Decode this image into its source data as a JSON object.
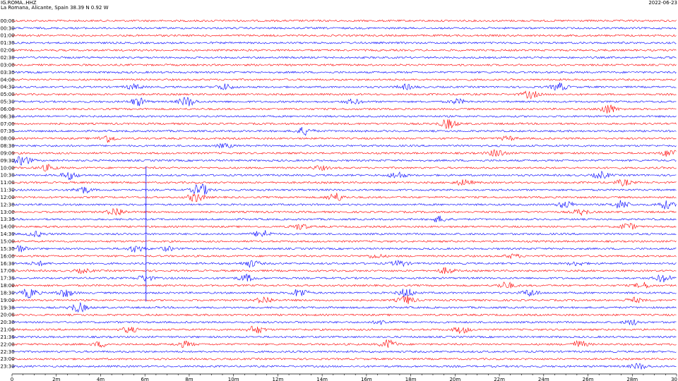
{
  "header": {
    "station": "IG.ROMA..HHZ",
    "location": "La Romana, Alicante, Spain  38.39 N 0.92 W",
    "date": "2022-06-23"
  },
  "colors": {
    "red": "#ff0000",
    "blue": "#0000ff",
    "axis": "#000000"
  },
  "chart_data": {
    "type": "line",
    "title": "IG.ROMA..HHZ",
    "row_labels": [
      "00:00",
      "00:30",
      "01:00",
      "01:30",
      "02:00",
      "02:30",
      "03:00",
      "03:30",
      "04:00",
      "04:30",
      "05:00",
      "05:30",
      "06:00",
      "06:30",
      "07:00",
      "07:30",
      "08:00",
      "08:30",
      "09:00",
      "09:30",
      "10:00",
      "10:30",
      "11:00",
      "11:30",
      "12:00",
      "12:30",
      "13:00",
      "13:30",
      "14:00",
      "14:30",
      "15:00",
      "15:30",
      "16:00",
      "16:30",
      "17:00",
      "17:30",
      "18:00",
      "18:30",
      "19:00",
      "19:30",
      "20:00",
      "20:30",
      "21:00",
      "21:30",
      "22:00",
      "22:30",
      "23:00",
      "23:30"
    ],
    "row_colors": [
      "red",
      "blue"
    ],
    "x_ticks": [
      {
        "value": 0,
        "label": "0"
      },
      {
        "value": 2,
        "label": "2m"
      },
      {
        "value": 4,
        "label": "4m"
      },
      {
        "value": 6,
        "label": "6m"
      },
      {
        "value": 8,
        "label": "8m"
      },
      {
        "value": 10,
        "label": "10m"
      },
      {
        "value": 12,
        "label": "12m"
      },
      {
        "value": 14,
        "label": "14m"
      },
      {
        "value": 16,
        "label": "16m"
      },
      {
        "value": 18,
        "label": "18m"
      },
      {
        "value": 20,
        "label": "20m"
      },
      {
        "value": 22,
        "label": "22m"
      },
      {
        "value": 24,
        "label": "24m"
      },
      {
        "value": 26,
        "label": "26m"
      },
      {
        "value": 28,
        "label": "28m"
      },
      {
        "value": 30,
        "label": "30"
      }
    ],
    "xlim": [
      0,
      30
    ],
    "bursts": [
      {
        "row": 9,
        "t": 5.5,
        "amp": 0.5
      },
      {
        "row": 9,
        "t": 9.6,
        "amp": 0.6
      },
      {
        "row": 9,
        "t": 17.8,
        "amp": 0.5
      },
      {
        "row": 9,
        "t": 24.7,
        "amp": 0.8
      },
      {
        "row": 10,
        "t": 23.4,
        "amp": 0.8
      },
      {
        "row": 11,
        "t": 5.7,
        "amp": 0.8
      },
      {
        "row": 11,
        "t": 7.9,
        "amp": 1.0
      },
      {
        "row": 11,
        "t": 15.4,
        "amp": 0.5
      },
      {
        "row": 11,
        "t": 20.1,
        "amp": 0.5
      },
      {
        "row": 12,
        "t": 26.9,
        "amp": 1.0
      },
      {
        "row": 14,
        "t": 19.7,
        "amp": 1.0
      },
      {
        "row": 15,
        "t": 13.2,
        "amp": 0.8
      },
      {
        "row": 16,
        "t": 4.3,
        "amp": 0.8
      },
      {
        "row": 16,
        "t": 22.4,
        "amp": 0.4
      },
      {
        "row": 17,
        "t": 9.6,
        "amp": 0.4
      },
      {
        "row": 18,
        "t": 21.9,
        "amp": 0.8
      },
      {
        "row": 18,
        "t": 29.7,
        "amp": 0.8
      },
      {
        "row": 19,
        "t": 0.5,
        "amp": 1.0
      },
      {
        "row": 20,
        "t": 1.6,
        "amp": 0.6
      },
      {
        "row": 20,
        "t": 13.9,
        "amp": 0.4
      },
      {
        "row": 21,
        "t": 2.6,
        "amp": 0.8
      },
      {
        "row": 21,
        "t": 17.4,
        "amp": 0.7
      },
      {
        "row": 21,
        "t": 26.6,
        "amp": 0.7
      },
      {
        "row": 22,
        "t": 20.4,
        "amp": 0.6
      },
      {
        "row": 22,
        "t": 27.6,
        "amp": 0.6
      },
      {
        "row": 23,
        "t": 3.2,
        "amp": 0.7
      },
      {
        "row": 23,
        "t": 8.5,
        "amp": 1.3
      },
      {
        "row": 24,
        "t": 8.3,
        "amp": 0.9
      },
      {
        "row": 24,
        "t": 14.6,
        "amp": 0.9
      },
      {
        "row": 25,
        "t": 25.0,
        "amp": 0.7
      },
      {
        "row": 25,
        "t": 27.5,
        "amp": 0.9
      },
      {
        "row": 25,
        "t": 29.5,
        "amp": 0.8
      },
      {
        "row": 26,
        "t": 4.7,
        "amp": 0.9
      },
      {
        "row": 26,
        "t": 25.7,
        "amp": 0.6
      },
      {
        "row": 27,
        "t": 19.3,
        "amp": 0.6
      },
      {
        "row": 28,
        "t": 13.0,
        "amp": 0.6
      },
      {
        "row": 28,
        "t": 27.8,
        "amp": 0.7
      },
      {
        "row": 29,
        "t": 1.1,
        "amp": 0.5
      },
      {
        "row": 29,
        "t": 11.3,
        "amp": 0.8
      },
      {
        "row": 31,
        "t": 0.3,
        "amp": 0.7
      },
      {
        "row": 31,
        "t": 5.6,
        "amp": 0.7
      },
      {
        "row": 31,
        "t": 7.0,
        "amp": 0.4
      },
      {
        "row": 32,
        "t": 16.4,
        "amp": 0.4
      },
      {
        "row": 32,
        "t": 22.6,
        "amp": 0.4
      },
      {
        "row": 33,
        "t": 1.2,
        "amp": 0.4
      },
      {
        "row": 33,
        "t": 10.8,
        "amp": 0.7
      },
      {
        "row": 33,
        "t": 17.5,
        "amp": 0.6
      },
      {
        "row": 33,
        "t": 25.5,
        "amp": 0.4
      },
      {
        "row": 34,
        "t": 19.6,
        "amp": 0.6
      },
      {
        "row": 34,
        "t": 3.2,
        "amp": 0.4
      },
      {
        "row": 35,
        "t": 6.0,
        "amp": 0.6
      },
      {
        "row": 35,
        "t": 10.6,
        "amp": 0.7
      },
      {
        "row": 35,
        "t": 29.4,
        "amp": 0.8
      },
      {
        "row": 36,
        "t": 22.3,
        "amp": 0.7
      },
      {
        "row": 36,
        "t": 28.5,
        "amp": 0.6
      },
      {
        "row": 37,
        "t": 0.8,
        "amp": 1.0
      },
      {
        "row": 37,
        "t": 2.4,
        "amp": 0.8
      },
      {
        "row": 37,
        "t": 13.0,
        "amp": 0.9
      },
      {
        "row": 37,
        "t": 17.8,
        "amp": 0.9
      },
      {
        "row": 37,
        "t": 23.4,
        "amp": 0.7
      },
      {
        "row": 38,
        "t": 11.4,
        "amp": 0.7
      },
      {
        "row": 38,
        "t": 17.8,
        "amp": 0.9
      },
      {
        "row": 38,
        "t": 28.1,
        "amp": 0.5
      },
      {
        "row": 39,
        "t": 3.0,
        "amp": 1.0
      },
      {
        "row": 41,
        "t": 16.7,
        "amp": 0.4
      },
      {
        "row": 41,
        "t": 28.0,
        "amp": 0.5
      },
      {
        "row": 42,
        "t": 5.3,
        "amp": 0.6
      },
      {
        "row": 42,
        "t": 11.0,
        "amp": 0.8
      },
      {
        "row": 42,
        "t": 20.3,
        "amp": 0.7
      },
      {
        "row": 44,
        "t": 4.0,
        "amp": 0.5
      },
      {
        "row": 44,
        "t": 7.8,
        "amp": 0.6
      },
      {
        "row": 44,
        "t": 17.0,
        "amp": 0.9
      },
      {
        "row": 44,
        "t": 25.6,
        "amp": 0.7
      },
      {
        "row": 47,
        "t": 28.3,
        "amp": 0.6
      }
    ]
  }
}
